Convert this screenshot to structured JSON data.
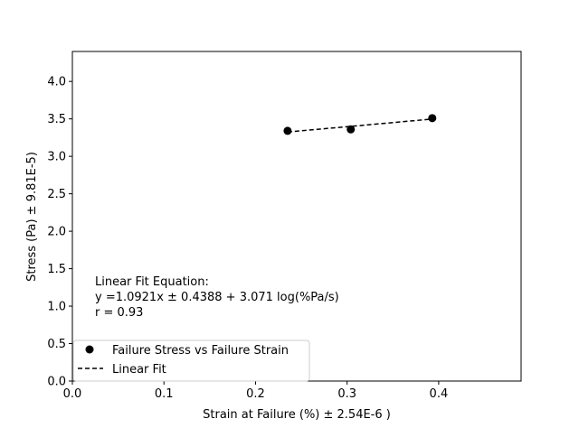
{
  "chart_data": {
    "type": "scatter",
    "xlabel": "Strain at Failure (%) ± 2.54E-6 )",
    "ylabel": "Stress (Pa) ± 9.81E-5)",
    "xlim": [
      0.0,
      0.49
    ],
    "ylim": [
      0.0,
      4.4
    ],
    "x_ticks": [
      "0.0",
      "0.1",
      "0.2",
      "0.3",
      "0.4"
    ],
    "y_ticks": [
      "0.0",
      "0.5",
      "1.0",
      "1.5",
      "2.0",
      "2.5",
      "3.0",
      "3.5",
      "4.0"
    ],
    "grid": false,
    "legend_position": "lower-left",
    "series": [
      {
        "name": "Failure Stress vs Failure Strain",
        "kind": "scatter",
        "color": "#000000",
        "x": [
          0.235,
          0.304,
          0.393
        ],
        "y": [
          3.34,
          3.36,
          3.51
        ]
      },
      {
        "name": "Linear Fit",
        "kind": "dashed-line",
        "color": "#000000",
        "x": [
          0.235,
          0.304,
          0.393
        ],
        "y": [
          3.325,
          3.4,
          3.498
        ]
      }
    ],
    "annotation": [
      "Linear Fit Equation:",
      "y =1.0921x ± 0.4388 + 3.071 log(%Pa/s)",
      "r = 0.93"
    ]
  }
}
